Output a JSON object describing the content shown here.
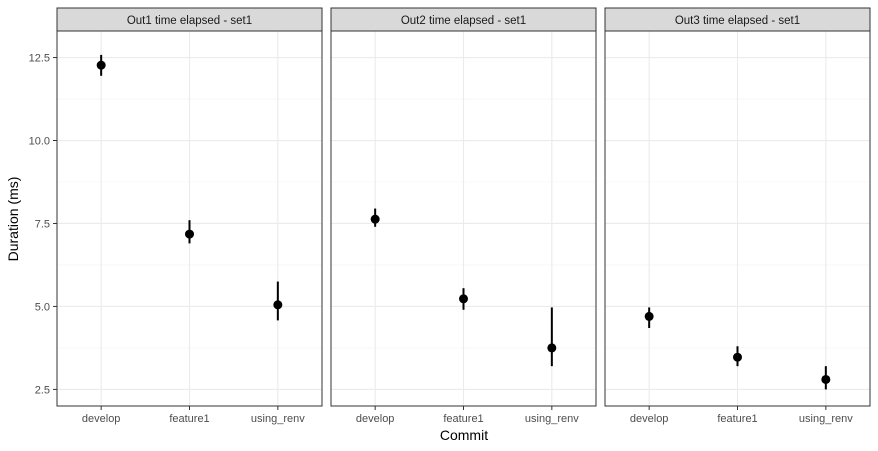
{
  "chart_data": {
    "type": "scatter",
    "subtype": "pointrange",
    "xlabel": "Commit",
    "ylabel": "Duration (ms)",
    "categories": [
      "develop",
      "feature1",
      "using_renv"
    ],
    "ylim": [
      2.0,
      13.3
    ],
    "yticks": [
      2.5,
      5.0,
      7.5,
      10.0,
      12.5
    ],
    "ytick_labels": [
      "2.5",
      "5.0",
      "7.5",
      "10.0",
      "12.5"
    ],
    "grid": true,
    "legend": "none",
    "point_color": "#000000",
    "strip_fill": "#d9d9d9",
    "panels": [
      {
        "title": "Out1 time elapsed - set1",
        "points": [
          {
            "x": "develop",
            "y": 12.27,
            "ymin": 11.95,
            "ymax": 12.58
          },
          {
            "x": "feature1",
            "y": 7.18,
            "ymin": 6.9,
            "ymax": 7.6
          },
          {
            "x": "using_renv",
            "y": 5.05,
            "ymin": 4.58,
            "ymax": 5.75
          }
        ]
      },
      {
        "title": "Out2 time elapsed - set1",
        "points": [
          {
            "x": "develop",
            "y": 7.63,
            "ymin": 7.4,
            "ymax": 7.95
          },
          {
            "x": "feature1",
            "y": 5.23,
            "ymin": 4.9,
            "ymax": 5.55
          },
          {
            "x": "using_renv",
            "y": 3.75,
            "ymin": 3.2,
            "ymax": 4.97
          }
        ]
      },
      {
        "title": "Out3 time elapsed - set1",
        "points": [
          {
            "x": "develop",
            "y": 4.7,
            "ymin": 4.35,
            "ymax": 4.97
          },
          {
            "x": "feature1",
            "y": 3.47,
            "ymin": 3.2,
            "ymax": 3.8
          },
          {
            "x": "using_renv",
            "y": 2.8,
            "ymin": 2.5,
            "ymax": 3.2
          }
        ]
      }
    ]
  }
}
